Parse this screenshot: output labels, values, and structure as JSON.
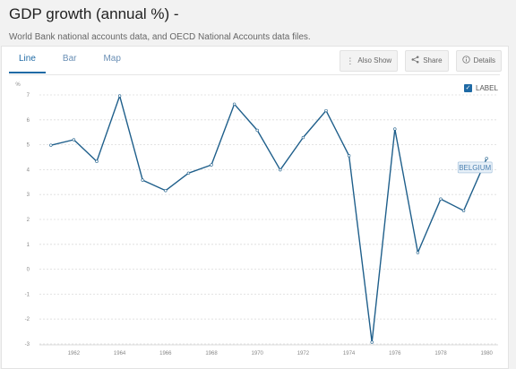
{
  "header": {
    "title": "GDP growth (annual %) -",
    "subtitle": "World Bank national accounts data, and OECD National Accounts data files."
  },
  "tabs": [
    {
      "label": "Line",
      "active": true
    },
    {
      "label": "Bar",
      "active": false
    },
    {
      "label": "Map",
      "active": false
    }
  ],
  "actions": {
    "also_show": "Also Show",
    "share": "Share",
    "details": "Details"
  },
  "legend_toggle": {
    "label": "LABEL",
    "checked": true
  },
  "colors": {
    "line": "#1f5f8b",
    "accent": "#1f6aa5",
    "grid": "#dcdcdc"
  },
  "chart_data": {
    "type": "line",
    "ylabel": "%",
    "ylim": [
      -3,
      7
    ],
    "yticks": [
      -3,
      -2,
      -1,
      0,
      1,
      2,
      3,
      4,
      5,
      6,
      7
    ],
    "xlim": [
      1960.5,
      1980.5
    ],
    "xticks": [
      1962,
      1964,
      1966,
      1968,
      1970,
      1972,
      1974,
      1976,
      1978,
      1980
    ],
    "grid": true,
    "series": [
      {
        "name": "BELGIUM",
        "x": [
          1961,
          1962,
          1963,
          1964,
          1965,
          1966,
          1967,
          1968,
          1969,
          1970,
          1971,
          1972,
          1973,
          1974,
          1975,
          1976,
          1977,
          1978,
          1979,
          1980
        ],
        "values": [
          4.98,
          5.2,
          4.33,
          6.96,
          3.58,
          3.16,
          3.86,
          4.19,
          6.63,
          5.58,
          3.99,
          5.29,
          6.37,
          4.56,
          -2.93,
          5.63,
          0.67,
          2.82,
          2.35,
          4.45
        ]
      }
    ]
  }
}
